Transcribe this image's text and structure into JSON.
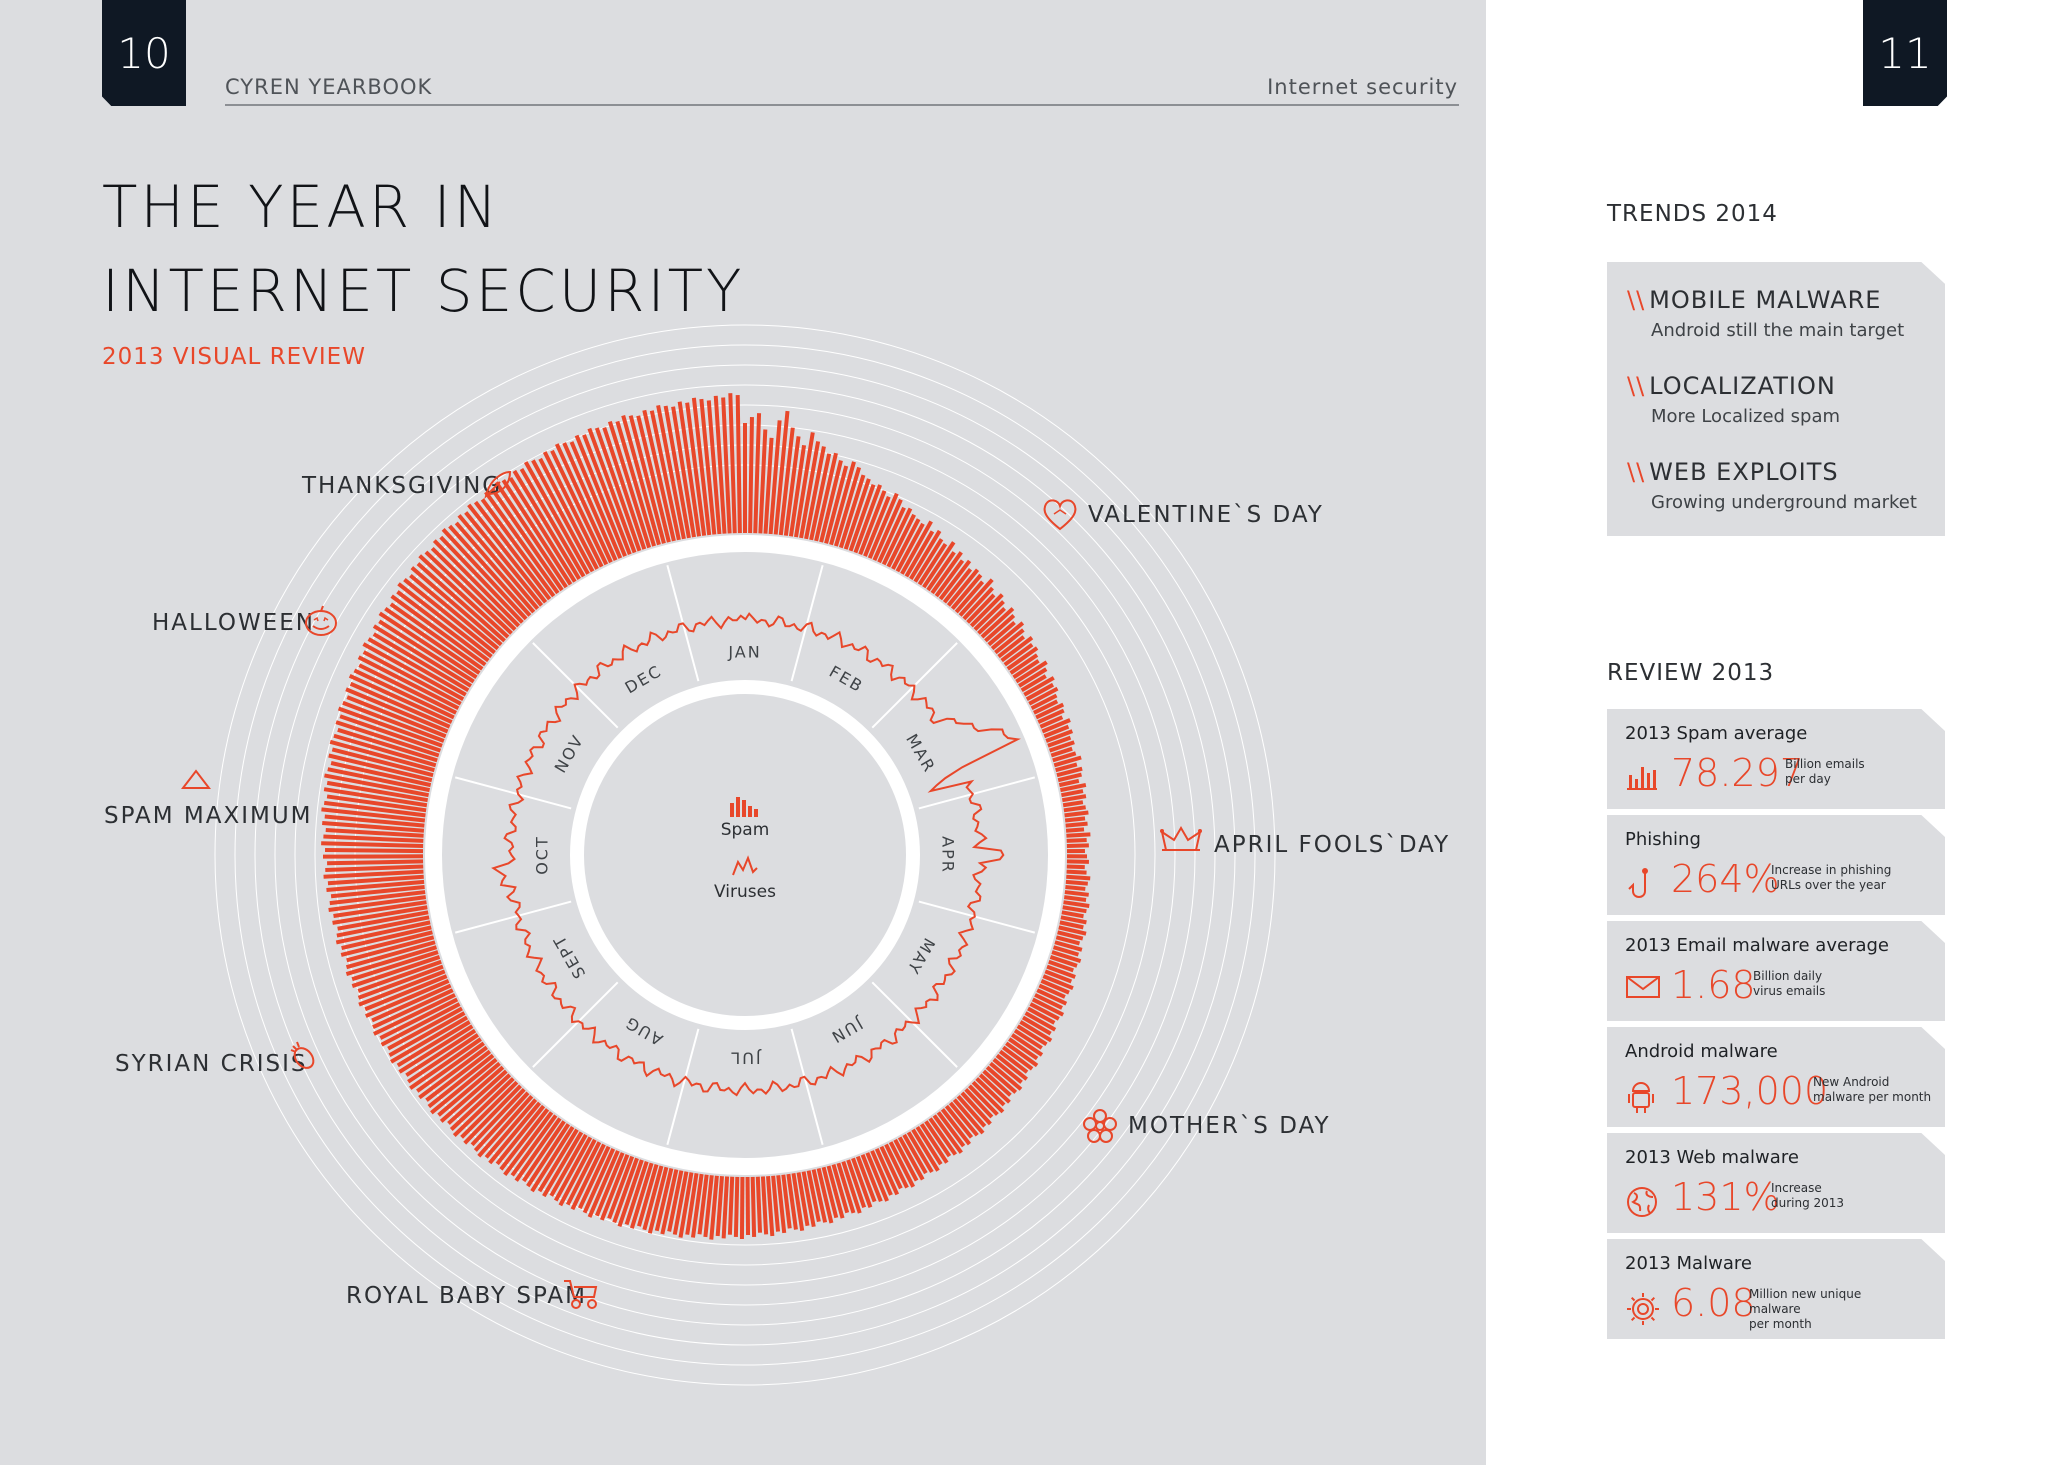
{
  "pages": {
    "left_number": "10",
    "right_number": "11"
  },
  "header": {
    "publication": "CYREN YEARBOOK",
    "section": "Internet security"
  },
  "title": {
    "line1": "THE YEAR IN",
    "line2": "INTERNET SECURITY",
    "subtitle": "2013 VISUAL REVIEW"
  },
  "legend": {
    "spam": "Spam",
    "viruses": "Viruses"
  },
  "events": {
    "thanksgiving": "THANKSGIVING",
    "halloween": "HALLOWEEN",
    "spam_maximum": "SPAM MAXIMUM",
    "syrian_crisis": "SYRIAN CRISIS",
    "royal_baby_spam": "ROYAL BABY SPAM",
    "valentines_day": "VALENTINE`S DAY",
    "april_fools_day": "APRIL FOOLS`DAY",
    "mothers_day": "MOTHER`S DAY"
  },
  "trends": {
    "title": "TRENDS 2014",
    "items": [
      {
        "head": "MOBILE MALWARE",
        "sub": "Android still the main target"
      },
      {
        "head": "LOCALIZATION",
        "sub": "More Localized spam"
      },
      {
        "head": "WEB EXPLOITS",
        "sub": "Growing underground market"
      }
    ]
  },
  "review": {
    "title": "REVIEW 2013",
    "stats": [
      {
        "label": "2013 Spam average",
        "value": "78.297",
        "note1": "Billion emails",
        "note2": "per day",
        "icon": "bar-chart-icon"
      },
      {
        "label": "Phishing",
        "value": "264%",
        "note1": "Increase in phishing",
        "note2": "URLs over the year",
        "icon": "fish-hook-icon"
      },
      {
        "label": "2013 Email malware average",
        "value": "1.68",
        "note1": "Billion daily",
        "note2": "virus emails",
        "icon": "envelope-icon"
      },
      {
        "label": "Android malware",
        "value": "173,000",
        "note1": "New Android",
        "note2": "malware per month",
        "icon": "android-icon"
      },
      {
        "label": "2013 Web malware",
        "value": "131%",
        "note1": "Increase",
        "note2": "during 2013",
        "icon": "globe-icon"
      },
      {
        "label": "2013 Malware",
        "value": "6.08",
        "note1": "Million new unique malware",
        "note2": "per month",
        "icon": "virus-icon"
      }
    ]
  },
  "colors": {
    "accent": "#e8472a",
    "dark": "#0f1824",
    "page_bg": "#dcdde0"
  },
  "chart_data": {
    "type": "bar",
    "layout": "radial",
    "months": [
      "JAN",
      "FEB",
      "MAR",
      "APR",
      "MAY",
      "JUN",
      "JUL",
      "AUG",
      "SEPT",
      "OCT",
      "NOV",
      "DEC"
    ],
    "series": [
      {
        "name": "Spam",
        "resolution": "daily",
        "unit": "relative",
        "values": [
          55,
          58,
          60,
          52,
          48,
          57,
          62,
          54,
          50,
          46,
          53,
          49,
          47,
          44,
          45,
          42,
          40,
          43,
          41,
          38,
          37,
          35,
          36,
          34,
          32,
          35,
          33,
          30,
          31,
          29,
          28,
          27,
          30,
          26,
          28,
          25,
          24,
          27,
          23,
          25,
          22,
          24,
          21,
          23,
          22,
          20,
          24,
          21,
          19,
          22,
          20,
          18,
          21,
          19,
          17,
          20,
          18,
          16,
          19,
          17,
          18,
          16,
          15,
          18,
          16,
          14,
          17,
          15,
          16,
          14,
          13,
          15,
          14,
          12,
          15,
          13,
          14,
          12,
          13,
          11,
          12,
          14,
          11,
          13,
          12,
          10,
          13,
          11,
          12,
          10,
          11,
          12,
          10,
          11,
          9,
          12,
          10,
          11,
          9,
          10,
          11,
          9,
          10,
          12,
          11,
          10,
          12,
          11,
          13,
          12,
          11,
          13,
          12,
          14,
          13,
          12,
          14,
          13,
          15,
          14,
          13,
          15,
          14,
          16,
          15,
          14,
          16,
          15,
          17,
          16,
          15,
          17,
          16,
          18,
          17,
          16,
          18,
          17,
          19,
          18,
          17,
          19,
          18,
          20,
          19,
          18,
          20,
          19,
          21,
          20,
          19,
          21,
          20,
          22,
          21,
          20,
          22,
          21,
          23,
          22,
          21,
          23,
          22,
          24,
          23,
          22,
          24,
          23,
          25,
          24,
          23,
          25,
          24,
          26,
          25,
          24,
          26,
          25,
          27,
          26,
          25,
          27,
          26,
          28,
          27,
          26,
          28,
          27,
          29,
          28,
          27,
          29,
          28,
          30,
          29,
          28,
          30,
          29,
          31,
          30,
          29,
          31,
          30,
          32,
          31,
          30,
          32,
          31,
          33,
          32,
          31,
          33,
          32,
          34,
          33,
          32,
          34,
          33,
          35,
          34,
          33,
          35,
          34,
          36,
          35,
          34,
          36,
          35,
          37,
          36,
          35,
          37,
          36,
          38,
          37,
          36,
          38,
          37,
          39,
          38,
          37,
          39,
          38,
          40,
          39,
          38,
          40,
          39,
          41,
          40,
          39,
          41,
          40,
          42,
          41,
          40,
          42,
          41,
          43,
          42,
          41,
          43,
          42,
          44,
          43,
          42,
          44,
          43,
          45,
          44,
          43,
          45,
          44,
          46,
          45,
          44,
          46,
          45,
          47,
          46,
          45,
          47,
          46,
          48,
          47,
          46,
          48,
          47,
          49,
          48,
          47,
          49,
          48,
          50,
          49,
          48,
          50,
          49,
          51,
          50,
          49,
          51,
          50,
          52,
          51,
          50,
          52,
          51,
          53,
          52,
          51,
          53,
          52,
          54,
          53,
          52,
          54,
          53,
          55,
          54,
          53,
          55,
          54,
          56,
          55,
          54,
          56,
          55,
          57,
          56,
          55,
          57,
          56,
          58,
          57,
          56,
          58,
          57,
          59,
          58,
          57,
          59,
          58,
          60,
          59,
          58,
          60,
          59,
          61,
          60,
          59,
          61,
          60,
          62,
          61,
          60,
          62,
          61,
          63,
          62,
          61,
          63,
          62,
          64,
          63,
          62,
          64,
          63,
          65,
          64,
          63,
          65,
          64,
          66,
          65,
          64,
          66,
          65,
          67,
          66,
          65,
          67,
          66,
          68,
          67,
          66,
          68,
          67,
          69,
          68,
          67,
          69,
          68,
          70,
          69
        ]
      },
      {
        "name": "Viruses",
        "resolution": "daily",
        "unit": "relative"
      }
    ],
    "annotations": [
      "THANKSGIVING",
      "HALLOWEEN",
      "SPAM MAXIMUM",
      "SYRIAN CRISIS",
      "ROYAL BABY SPAM",
      "VALENTINE`S DAY",
      "APRIL FOOLS`DAY",
      "MOTHER`S DAY"
    ]
  }
}
